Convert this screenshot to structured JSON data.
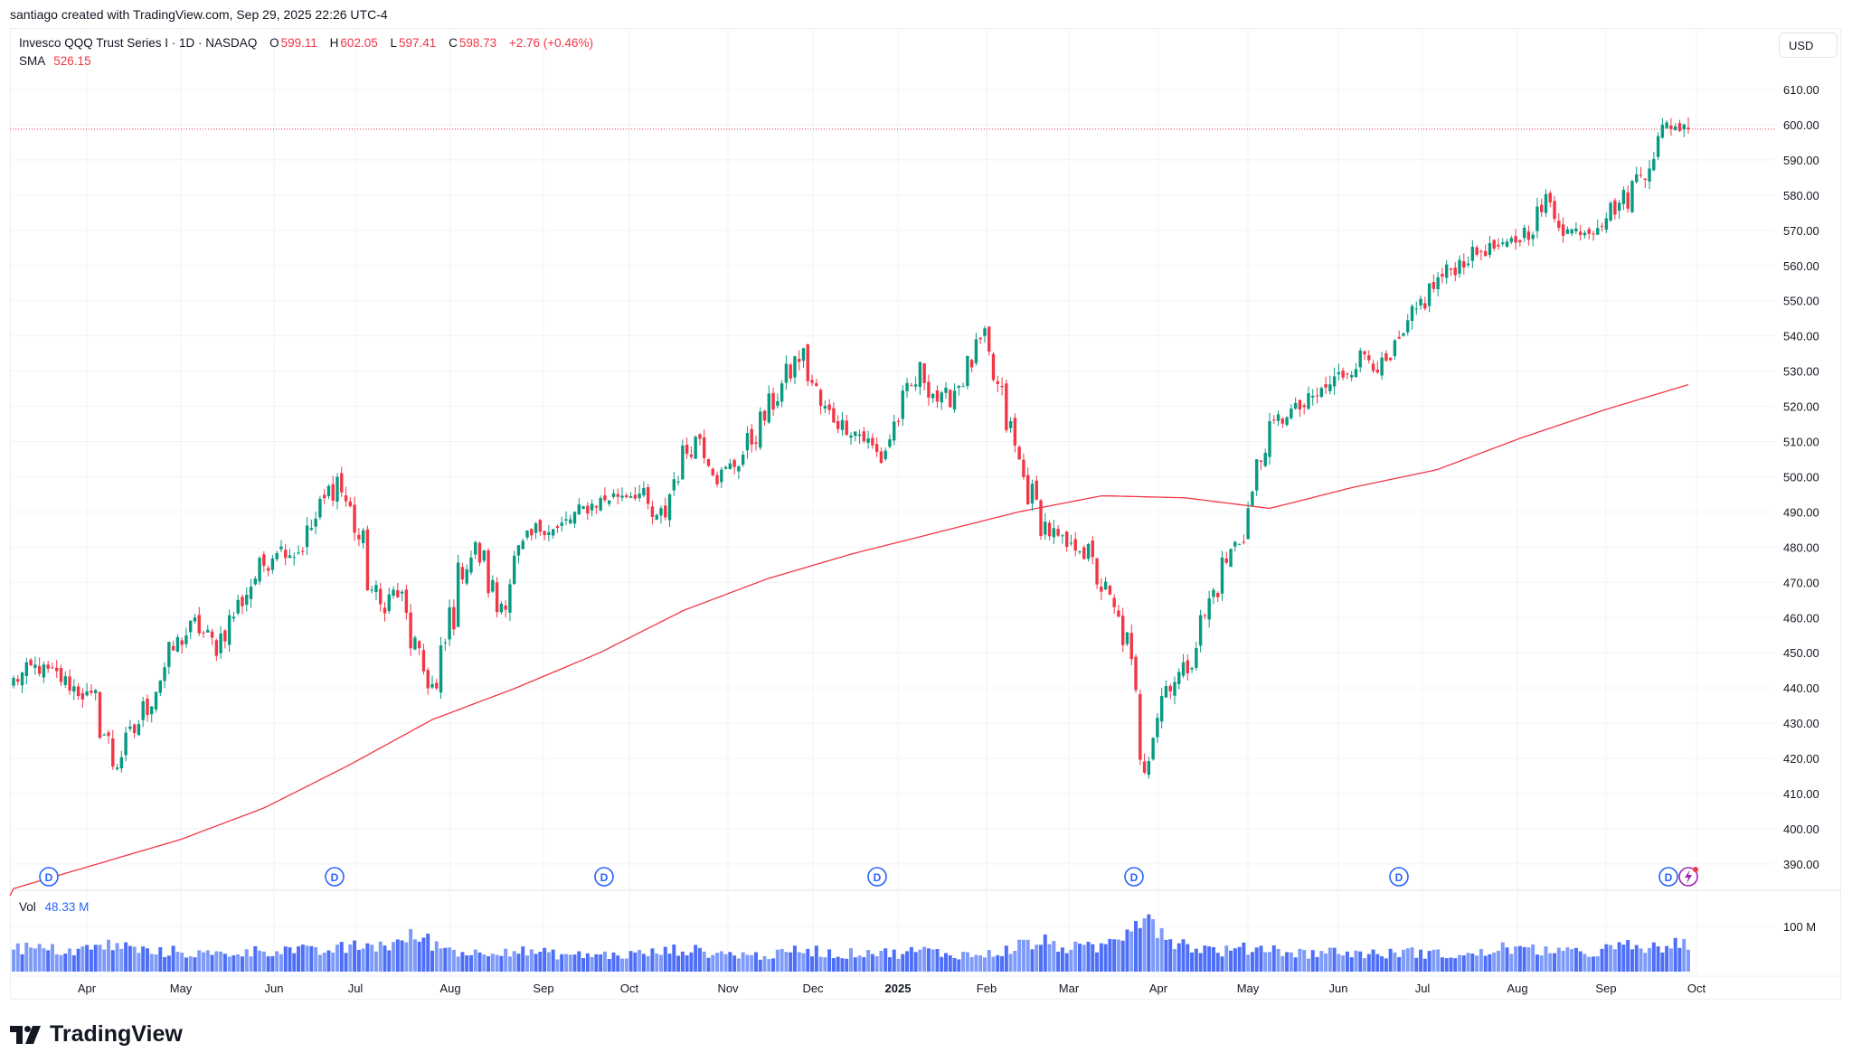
{
  "credit": "santiago created with TradingView.com, Sep 29, 2025 22:26 UTC-4",
  "legend": {
    "symbol": "Invesco QQQ Trust Series I · 1D · NASDAQ",
    "o_label": "O",
    "o": "599.11",
    "h_label": "H",
    "h": "602.05",
    "l_label": "L",
    "l": "597.41",
    "c_label": "C",
    "c": "598.73",
    "change": "+2.76 (+0.46%)",
    "sma_label": "SMA",
    "sma": "526.15",
    "vol_label": "Vol",
    "vol": "48.33 M"
  },
  "currency": "USD",
  "dividend_marker": "D",
  "logo_text": "TradingView",
  "colors": {
    "up": "#089981",
    "down": "#F23645",
    "sma": "#F23645",
    "volume": "#4d6ef7",
    "volume_light": "#7f9bf8",
    "dividend": "#2962FF"
  },
  "chart_data": {
    "type": "candlestick",
    "title": "Invesco QQQ Trust Series I · 1D · NASDAQ",
    "price_axis_ticks": [
      "610.00",
      "600.00",
      "590.00",
      "580.00",
      "570.00",
      "560.00",
      "550.00",
      "540.00",
      "530.00",
      "520.00",
      "510.00",
      "500.00",
      "490.00",
      "480.00",
      "470.00",
      "460.00",
      "450.00",
      "440.00",
      "430.00",
      "420.00",
      "410.00",
      "400.00",
      "390.00"
    ],
    "ylim": [
      385,
      615
    ],
    "volume_axis_ticks": [
      "100 M"
    ],
    "time_axis_ticks": [
      "Apr",
      "May",
      "Jun",
      "Jul",
      "Aug",
      "Sep",
      "Oct",
      "Nov",
      "Dec",
      "2025",
      "Feb",
      "Mar",
      "Apr",
      "May",
      "Jun",
      "Jul",
      "Aug",
      "Sep",
      "Oct"
    ],
    "trading_days": 389,
    "weekly_closes": [
      442,
      446,
      444,
      440,
      436,
      418,
      428,
      440,
      452,
      458,
      452,
      462,
      472,
      480,
      478,
      488,
      500,
      485,
      462,
      468,
      448,
      438,
      472,
      480,
      462,
      478,
      485,
      485,
      490,
      493,
      495,
      495,
      485,
      505,
      512,
      500,
      505,
      515,
      525,
      535,
      520,
      515,
      512,
      505,
      520,
      530,
      520,
      528,
      538,
      520,
      500,
      487,
      480,
      480,
      468,
      455,
      420,
      440,
      445,
      460,
      475,
      485,
      510,
      518,
      520,
      525,
      530,
      535,
      530,
      540,
      552,
      558,
      562,
      565,
      565,
      570,
      578,
      570,
      570,
      575,
      580,
      590,
      600,
      598.73
    ],
    "weekly_volume_m": [
      55,
      50,
      48,
      45,
      52,
      60,
      50,
      42,
      45,
      40,
      38,
      42,
      45,
      48,
      50,
      42,
      50,
      55,
      58,
      62,
      80,
      58,
      45,
      40,
      50,
      45,
      42,
      38,
      36,
      38,
      35,
      40,
      42,
      50,
      45,
      40,
      38,
      35,
      38,
      50,
      45,
      35,
      45,
      42,
      40,
      48,
      40,
      38,
      35,
      45,
      60,
      65,
      55,
      50,
      55,
      90,
      140,
      85,
      60,
      50,
      45,
      50,
      55,
      45,
      40,
      45,
      42,
      40,
      38,
      45,
      40,
      38,
      35,
      42,
      55,
      45,
      50,
      42,
      40,
      50,
      55,
      48,
      60,
      55
    ],
    "sma_200": {
      "label": "SMA",
      "points": [
        383,
        390,
        397,
        406,
        418,
        431,
        440,
        450,
        462,
        471,
        478,
        484,
        490,
        494.6,
        494,
        491,
        497,
        502,
        511,
        519,
        526.15
      ]
    },
    "last_price": 598.73,
    "dividend_count": 7
  }
}
